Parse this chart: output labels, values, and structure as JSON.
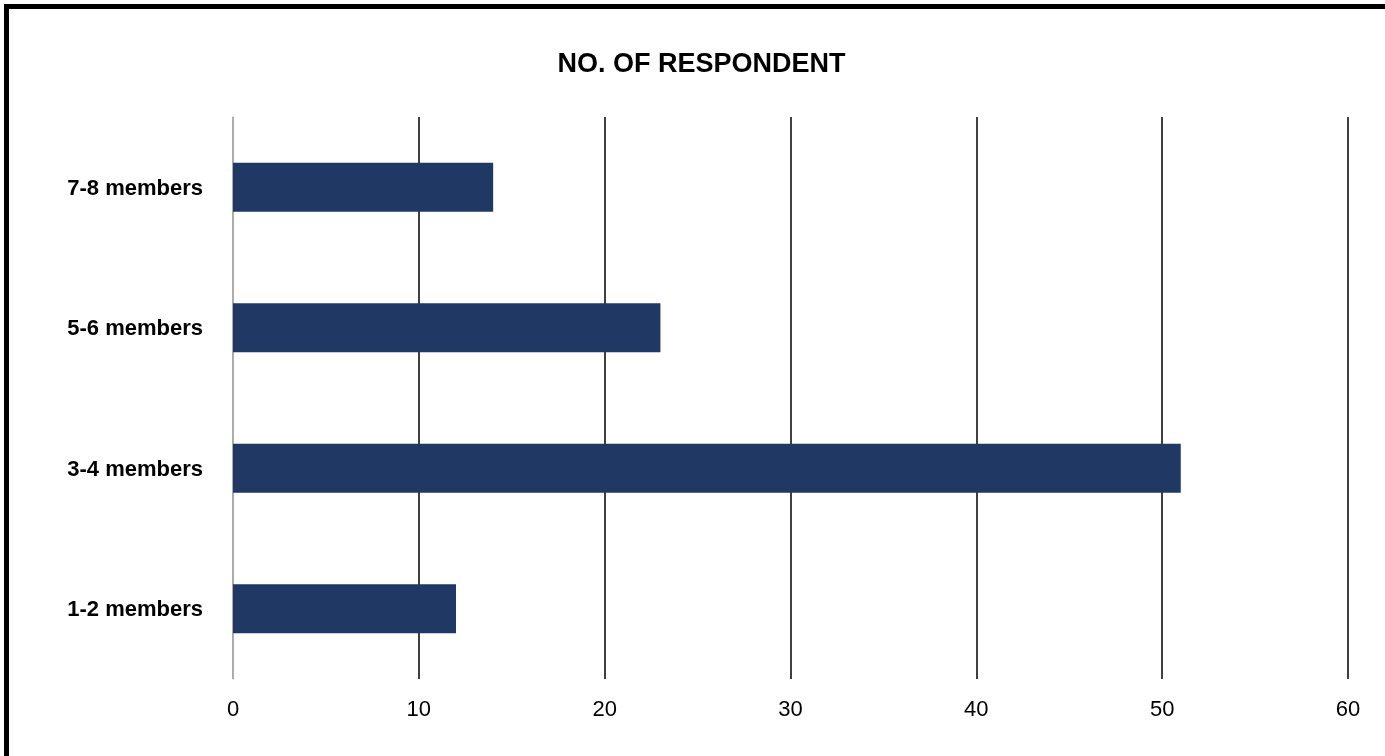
{
  "chart_data": {
    "type": "bar",
    "title": "NO. OF RESPONDENT",
    "orientation": "horizontal",
    "categories": [
      "7-8 members",
      "5-6 members",
      "3-4 members",
      "1-2 members"
    ],
    "values": [
      14,
      23,
      51,
      12
    ],
    "color": "#203864",
    "xlim": [
      0,
      60
    ],
    "xticks": [
      0,
      10,
      20,
      30,
      40,
      50,
      60
    ],
    "grid": "x"
  }
}
